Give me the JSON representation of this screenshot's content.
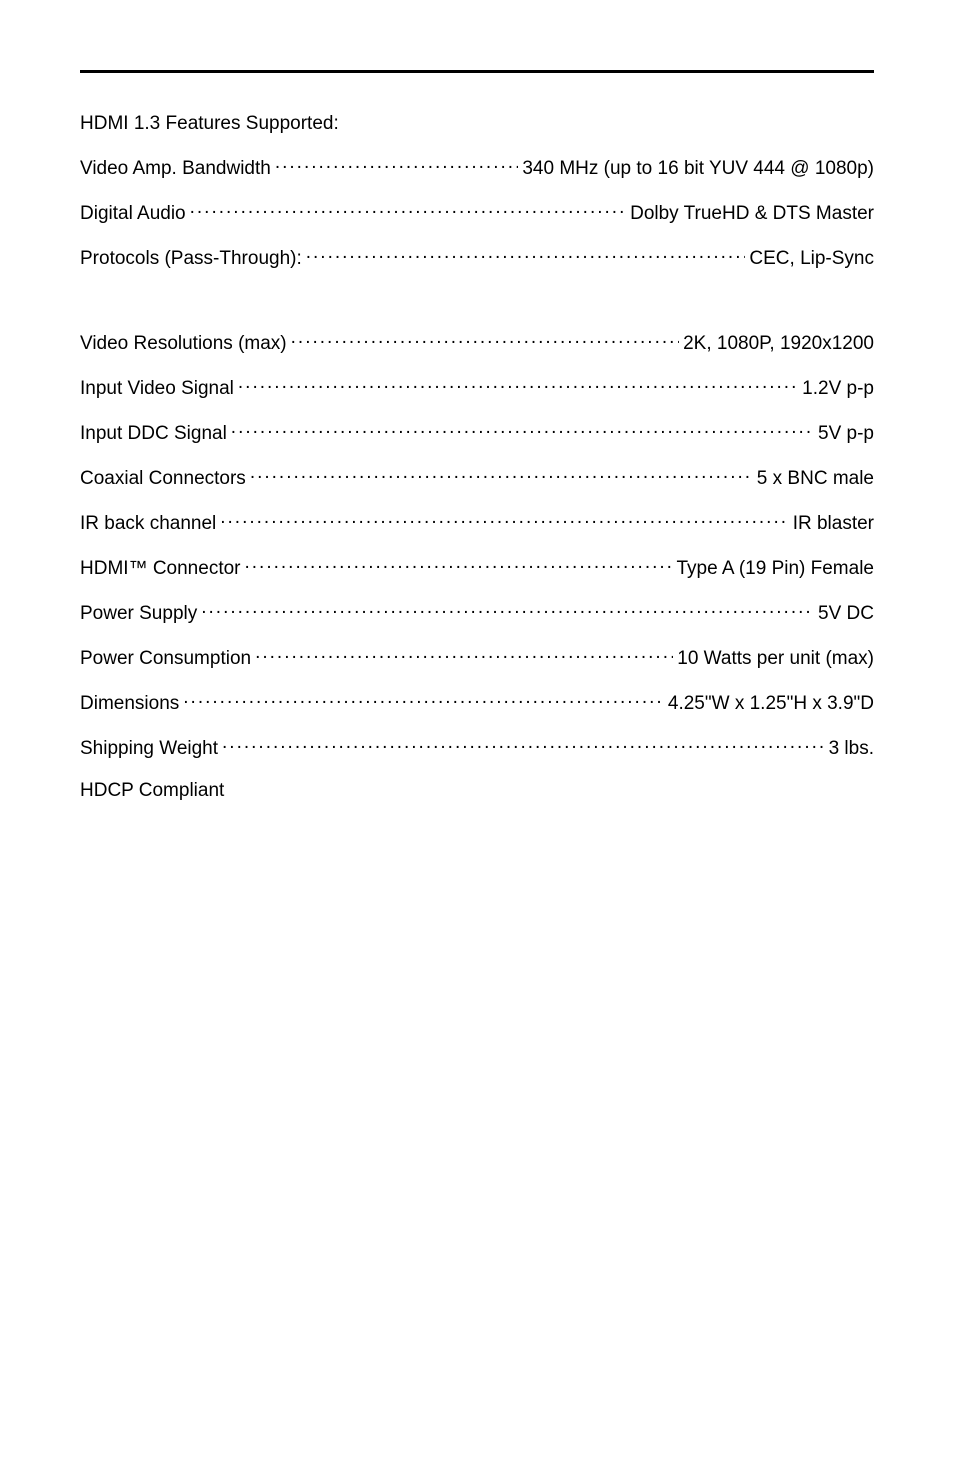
{
  "section1_heading": "HDMI 1.3 Features Supported:",
  "section1": [
    {
      "label": "Video Amp. Bandwidth",
      "value": "340 MHz (up to 16 bit YUV 444 @ 1080p)"
    },
    {
      "label": "Digital Audio ",
      "value": "Dolby TrueHD & DTS Master"
    },
    {
      "label": "Protocols (Pass-Through): ",
      "value": "CEC, Lip-Sync"
    }
  ],
  "section2": [
    {
      "label": "Video Resolutions (max) ",
      "value": "2K, 1080P, 1920x1200"
    },
    {
      "label": "Input Video Signal ",
      "value": "1.2V p-p"
    },
    {
      "label": "Input DDC Signal ",
      "value": "5V p-p"
    },
    {
      "label": "Coaxial Connectors ",
      "value": "5 x BNC male"
    },
    {
      "label": "IR back channel  ",
      "value": "IR blaster"
    },
    {
      "label": "HDMI™ Connector ",
      "value": "Type A (19 Pin) Female"
    },
    {
      "label": "Power Supply ",
      "value": "5V DC"
    },
    {
      "label": "Power Consumption ",
      "value": "10 Watts per unit (max)"
    },
    {
      "label": "Dimensions ",
      "value": "4.25\"W x 1.25\"H x 3.9\"D"
    },
    {
      "label": "Shipping Weight ",
      "value": "3 lbs."
    }
  ],
  "footer_line": "HDCP Compliant"
}
